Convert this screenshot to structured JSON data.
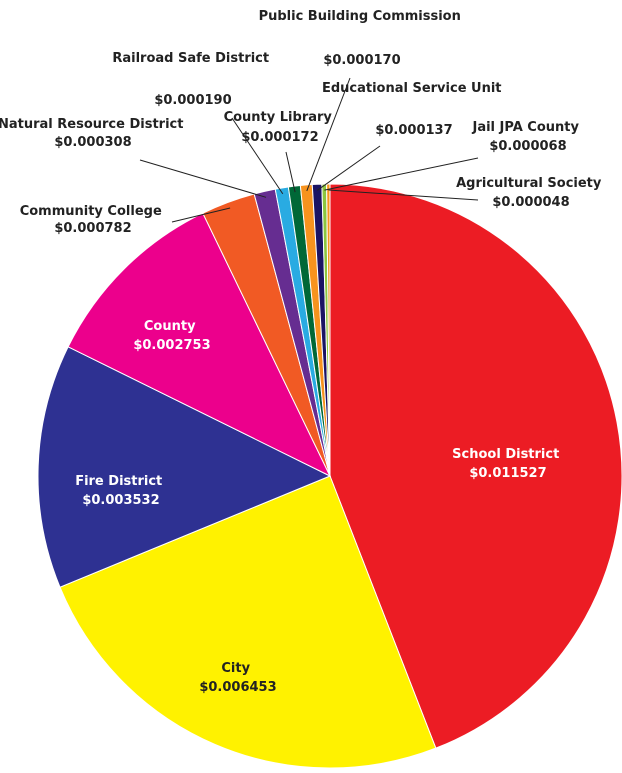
{
  "chart_data": {
    "type": "pie",
    "start": "12 o'clock, clockwise",
    "slices": [
      {
        "key": "school",
        "label": "School District",
        "value": "$0.011527",
        "amount": 0.011527,
        "color": "#ec1c24"
      },
      {
        "key": "city",
        "label": "City",
        "value": "$0.006453",
        "amount": 0.006453,
        "color": "#fff200"
      },
      {
        "key": "fire",
        "label": "Fire District",
        "value": "$0.003532",
        "amount": 0.003532,
        "color": "#2e3192"
      },
      {
        "key": "county",
        "label": "County",
        "value": "$0.002753",
        "amount": 0.002753,
        "color": "#ec008c"
      },
      {
        "key": "college",
        "label": "Community College",
        "value": "$0.000782",
        "amount": 0.000782,
        "color": "#f15a24"
      },
      {
        "key": "nrd",
        "label": "Natural Resource District",
        "value": "$0.000308",
        "amount": 0.000308,
        "color": "#662d91"
      },
      {
        "key": "railroad",
        "label": "Railroad Safe District",
        "value": "$0.000190",
        "amount": 0.00019,
        "color": "#29abe2"
      },
      {
        "key": "library",
        "label": "County Library",
        "value": "$0.000172",
        "amount": 0.000172,
        "color": "#006837"
      },
      {
        "key": "pbc",
        "label": "Public Building Commission",
        "value": "$0.000170",
        "amount": 0.00017,
        "color": "#f7931e"
      },
      {
        "key": "esu",
        "label": "Educational Service Unit",
        "value": "$0.000137",
        "amount": 0.000137,
        "color": "#1b1464"
      },
      {
        "key": "jail",
        "label": "Jail JPA County",
        "value": "$0.000068",
        "amount": 6.8e-05,
        "color": "#8cc63f"
      },
      {
        "key": "ag",
        "label": "Agricultural Society",
        "value": "$0.000048",
        "amount": 4.8e-05,
        "color": "#f7931e"
      }
    ]
  }
}
